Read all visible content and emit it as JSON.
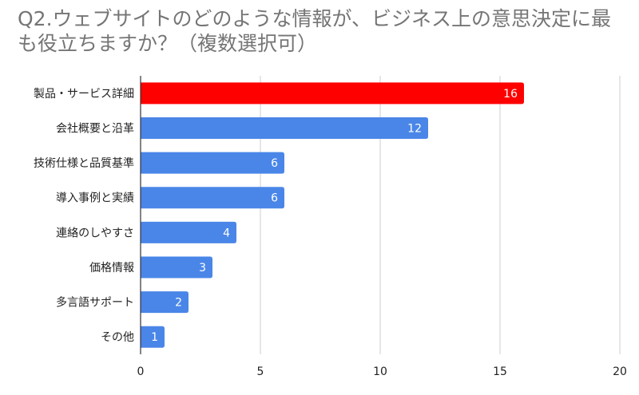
{
  "chart_data": {
    "type": "bar",
    "orientation": "horizontal",
    "title": "Q2.ウェブサイトのどのような情報が、ビジネス上の意思決定に最も役立ちますか？（複数選択可）",
    "categories": [
      "製品・サービス詳細",
      "会社概要と沿革",
      "技術仕様と品質基準",
      "導入事例と実績",
      "連絡のしやすさ",
      "価格情報",
      "多言語サポート",
      "その他"
    ],
    "values": [
      16,
      12,
      6,
      6,
      4,
      3,
      2,
      1
    ],
    "colors": [
      "#ff0000",
      "#4a86e8",
      "#4a86e8",
      "#4a86e8",
      "#4a86e8",
      "#4a86e8",
      "#4a86e8",
      "#4a86e8"
    ],
    "xlim": [
      0,
      20
    ],
    "xticks": [
      0,
      5,
      10,
      15,
      20
    ],
    "grid": true,
    "data_labels": true
  }
}
